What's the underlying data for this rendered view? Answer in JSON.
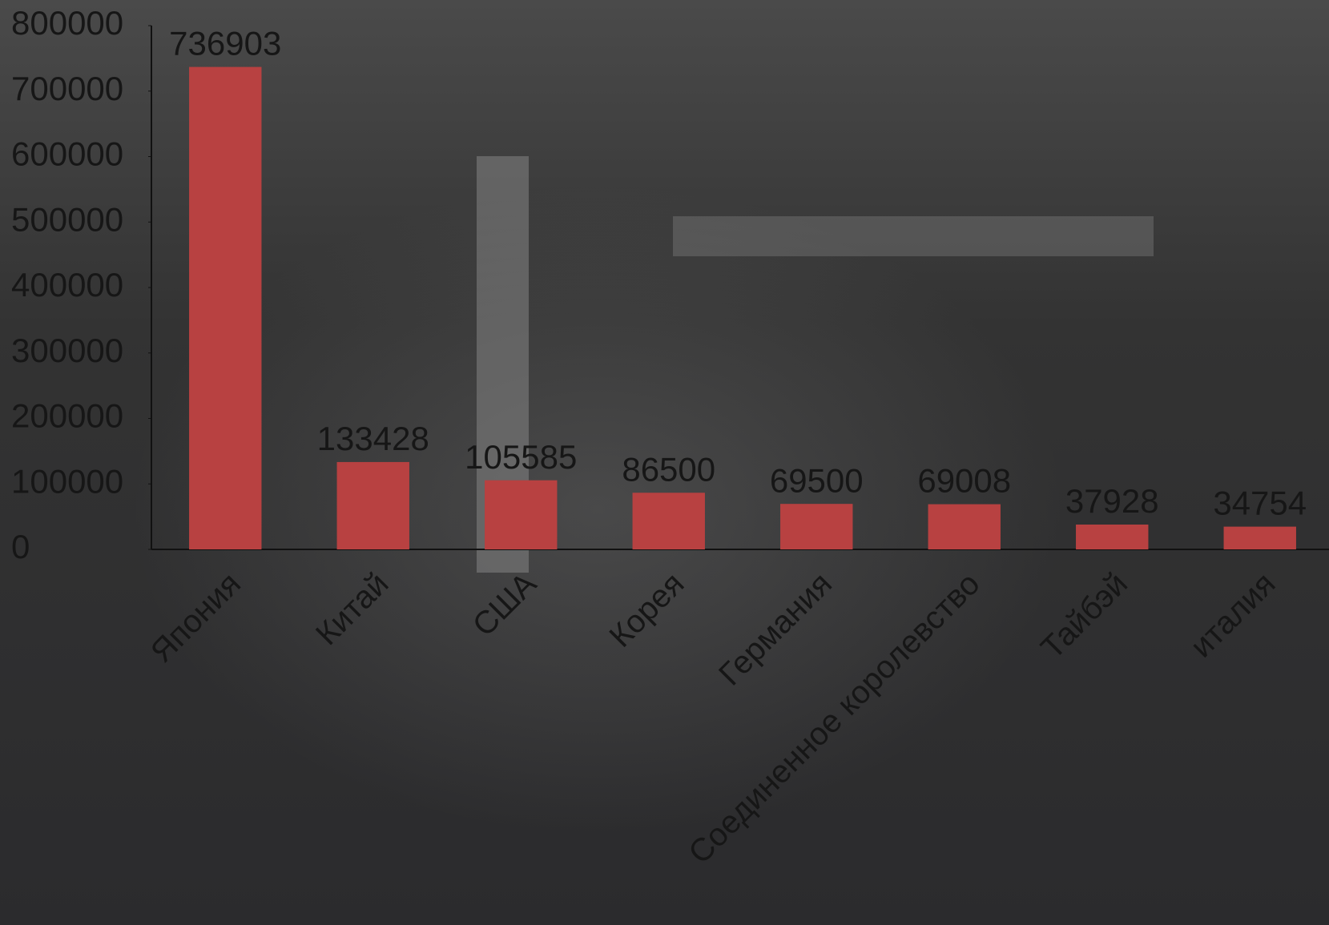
{
  "chart_data": {
    "type": "bar",
    "categories": [
      "Япония",
      "Китай",
      "США",
      "Корея",
      "Германия",
      "Соединенное королевство",
      "Тайбэй",
      "италия"
    ],
    "values": [
      736903,
      133428,
      105585,
      86500,
      69500,
      69008,
      37928,
      34754
    ],
    "color": "#b84141",
    "ylim": [
      0,
      800000
    ],
    "yticks": [
      0,
      100000,
      200000,
      300000,
      400000,
      500000,
      600000,
      700000,
      800000
    ],
    "grid": false
  }
}
